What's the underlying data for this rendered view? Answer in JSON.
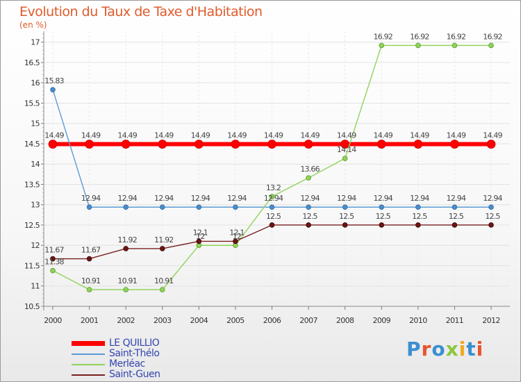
{
  "header": {
    "title": "Evolution du Taux de Taxe d'Habitation",
    "unit": "(en %)"
  },
  "brand": {
    "text": "Proxiti",
    "letter_colors": [
      "#3a8fd0",
      "#e8532d",
      "#3a8fd0",
      "#8dc63f",
      "#f2a81d",
      "#3a8fd0",
      "#e8532d"
    ]
  },
  "chart_data": {
    "type": "line",
    "title": "Evolution du Taux de Taxe d'Habitation",
    "ylabel": "(en %)",
    "xlabel": "",
    "ylim": [
      10.5,
      17.2
    ],
    "yticks": [
      10.5,
      11,
      11.5,
      12,
      12.5,
      13,
      13.5,
      14,
      14.5,
      15,
      15.5,
      16,
      16.5,
      17
    ],
    "x": [
      2000,
      2001,
      2002,
      2003,
      2004,
      2005,
      2006,
      2007,
      2008,
      2009,
      2010,
      2011,
      2012
    ],
    "series": [
      {
        "name": "LE QUILLIO",
        "color": "#ff0000",
        "values": [
          14.49,
          14.49,
          14.49,
          14.49,
          14.49,
          14.49,
          14.49,
          14.49,
          14.49,
          14.49,
          14.49,
          14.49,
          14.49
        ]
      },
      {
        "name": "Saint-Thélo",
        "color": "#5b9bd5",
        "values": [
          15.83,
          12.94,
          12.94,
          12.94,
          12.94,
          12.94,
          12.94,
          12.94,
          12.94,
          12.94,
          12.94,
          12.94,
          12.94
        ]
      },
      {
        "name": "Merléac",
        "color": "#8fd35c",
        "values": [
          11.38,
          10.91,
          10.91,
          10.91,
          12,
          12,
          13.2,
          13.66,
          14.14,
          16.92,
          16.92,
          16.92,
          16.92
        ]
      },
      {
        "name": "Saint-Guen",
        "color": "#7a1f1f",
        "values": [
          11.67,
          11.67,
          11.92,
          11.92,
          12.1,
          12.1,
          12.5,
          12.5,
          12.5,
          12.5,
          12.5,
          12.5,
          12.5
        ]
      }
    ],
    "legend_position": "bottom-left"
  }
}
